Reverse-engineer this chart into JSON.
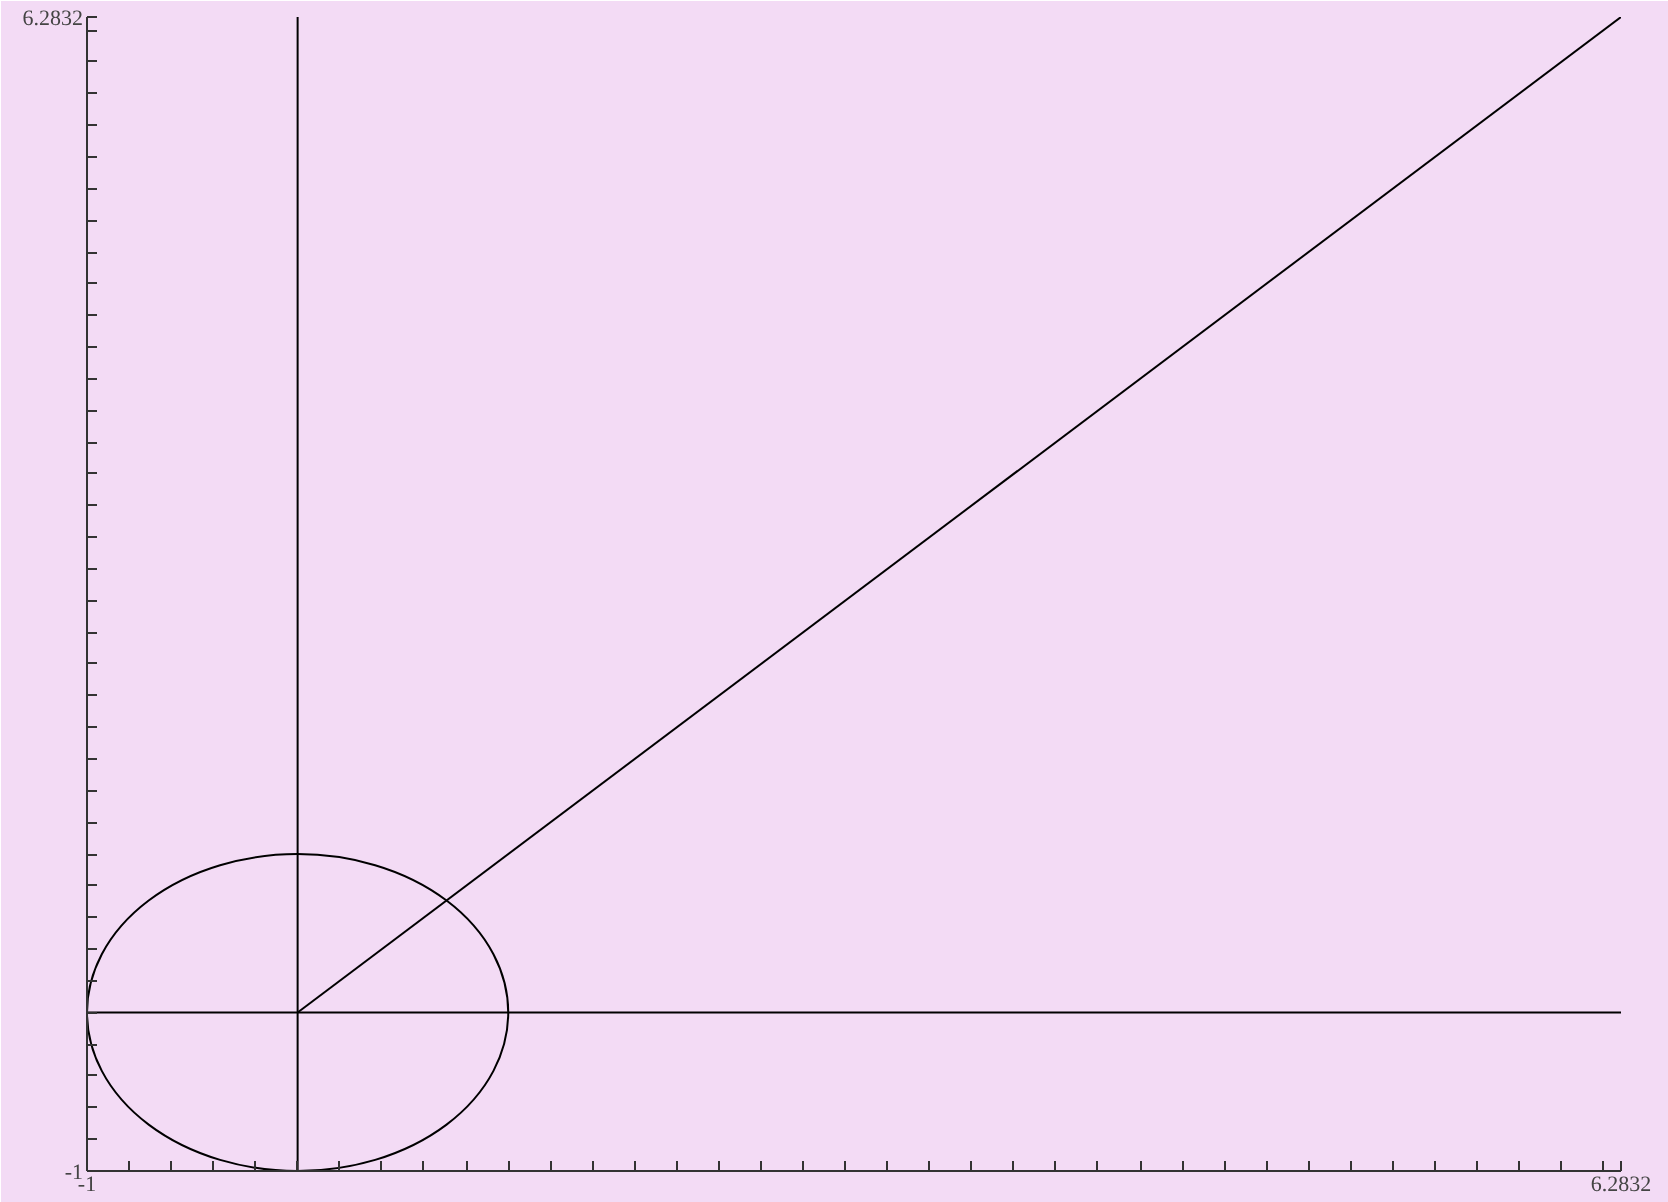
{
  "chart_data": {
    "type": "line",
    "xlim": [
      -1,
      6.2832
    ],
    "ylim": [
      -1,
      6.2832
    ],
    "xticks": [
      {
        "value": -1,
        "label": "-1"
      },
      {
        "value": -0.8,
        "label": null
      },
      {
        "value": -0.6,
        "label": null
      },
      {
        "value": -0.4,
        "label": null
      },
      {
        "value": -0.2,
        "label": null
      },
      {
        "value": 0,
        "label": null
      },
      {
        "value": 0.2,
        "label": null
      },
      {
        "value": 0.4,
        "label": null
      },
      {
        "value": 0.6,
        "label": null
      },
      {
        "value": 0.8,
        "label": null
      },
      {
        "value": 1,
        "label": null
      },
      {
        "value": 1.2,
        "label": null
      },
      {
        "value": 1.4,
        "label": null
      },
      {
        "value": 1.6,
        "label": null
      },
      {
        "value": 1.8,
        "label": null
      },
      {
        "value": 2,
        "label": null
      },
      {
        "value": 2.2,
        "label": null
      },
      {
        "value": 2.4,
        "label": null
      },
      {
        "value": 2.6,
        "label": null
      },
      {
        "value": 2.8,
        "label": null
      },
      {
        "value": 3,
        "label": null
      },
      {
        "value": 3.2,
        "label": null
      },
      {
        "value": 3.4,
        "label": null
      },
      {
        "value": 3.6,
        "label": null
      },
      {
        "value": 3.8,
        "label": null
      },
      {
        "value": 4,
        "label": null
      },
      {
        "value": 4.2,
        "label": null
      },
      {
        "value": 4.4,
        "label": null
      },
      {
        "value": 4.6,
        "label": null
      },
      {
        "value": 4.8,
        "label": null
      },
      {
        "value": 5,
        "label": null
      },
      {
        "value": 5.2,
        "label": null
      },
      {
        "value": 5.4,
        "label": null
      },
      {
        "value": 5.6,
        "label": null
      },
      {
        "value": 5.8,
        "label": null
      },
      {
        "value": 6,
        "label": null
      },
      {
        "value": 6.2,
        "label": null
      },
      {
        "value": 6.2832,
        "label": "6.2832"
      }
    ],
    "yticks": [
      {
        "value": -1,
        "label": "-1"
      },
      {
        "value": -0.8,
        "label": null
      },
      {
        "value": -0.6,
        "label": null
      },
      {
        "value": -0.4,
        "label": null
      },
      {
        "value": -0.2,
        "label": null
      },
      {
        "value": 0,
        "label": null
      },
      {
        "value": 0.2,
        "label": null
      },
      {
        "value": 0.4,
        "label": null
      },
      {
        "value": 0.6,
        "label": null
      },
      {
        "value": 0.8,
        "label": null
      },
      {
        "value": 1,
        "label": null
      },
      {
        "value": 1.2,
        "label": null
      },
      {
        "value": 1.4,
        "label": null
      },
      {
        "value": 1.6,
        "label": null
      },
      {
        "value": 1.8,
        "label": null
      },
      {
        "value": 2,
        "label": null
      },
      {
        "value": 2.2,
        "label": null
      },
      {
        "value": 2.4,
        "label": null
      },
      {
        "value": 2.6,
        "label": null
      },
      {
        "value": 2.8,
        "label": null
      },
      {
        "value": 3,
        "label": null
      },
      {
        "value": 3.2,
        "label": null
      },
      {
        "value": 3.4,
        "label": null
      },
      {
        "value": 3.6,
        "label": null
      },
      {
        "value": 3.8,
        "label": null
      },
      {
        "value": 4,
        "label": null
      },
      {
        "value": 4.2,
        "label": null
      },
      {
        "value": 4.4,
        "label": null
      },
      {
        "value": 4.6,
        "label": null
      },
      {
        "value": 4.8,
        "label": null
      },
      {
        "value": 5,
        "label": null
      },
      {
        "value": 5.2,
        "label": null
      },
      {
        "value": 5.4,
        "label": null
      },
      {
        "value": 5.6,
        "label": null
      },
      {
        "value": 5.8,
        "label": null
      },
      {
        "value": 6,
        "label": null
      },
      {
        "value": 6.2,
        "label": null
      },
      {
        "value": 6.2832,
        "label": "6.2832"
      }
    ],
    "series": [
      {
        "color": "#000000",
        "x": [
          0,
          6.2832
        ],
        "values": [
          0,
          6.2832
        ]
      },
      {
        "color": "#000000",
        "x": [
          0,
          0
        ],
        "values": [
          -1,
          6.2832
        ]
      },
      {
        "color": "#000000",
        "x": [
          -1,
          6.2832
        ],
        "values": [
          0,
          0
        ]
      }
    ],
    "grid": false,
    "marker": "none",
    "line_style": "solid"
  }
}
